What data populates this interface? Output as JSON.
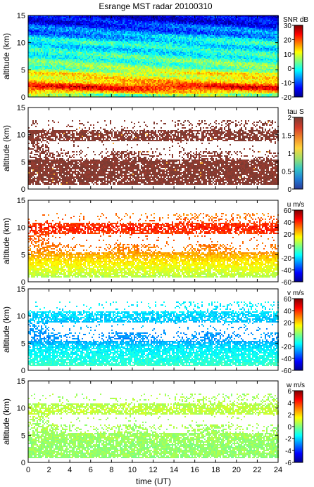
{
  "chart_data": {
    "type": "heatmap",
    "title": "Esrange MST radar 20100310",
    "xlabel": "time (UT)",
    "x_ticks": [
      0,
      2,
      4,
      6,
      8,
      10,
      12,
      14,
      16,
      18,
      20,
      22,
      24
    ],
    "xlim": [
      0,
      24
    ],
    "panels": [
      {
        "ylabel": "altitude (km)",
        "ylim": [
          0,
          15
        ],
        "y_ticks": [
          0,
          5,
          10,
          15
        ],
        "quantity": "SNR",
        "unit": "dB",
        "clim": [
          -20,
          30
        ],
        "cbar_ticks": [
          -20,
          -10,
          0,
          10,
          20,
          30
        ],
        "coverage": "full",
        "profile": [
          [
            0.5,
            5
          ],
          [
            1.0,
            14
          ],
          [
            1.5,
            20
          ],
          [
            2.0,
            24
          ],
          [
            2.5,
            18
          ],
          [
            3.0,
            14
          ],
          [
            3.5,
            12
          ],
          [
            4.0,
            9
          ],
          [
            4.5,
            12
          ],
          [
            5.0,
            6
          ],
          [
            6.0,
            4
          ],
          [
            7.0,
            2
          ],
          [
            8.0,
            0
          ],
          [
            9.0,
            -2
          ],
          [
            10.0,
            0
          ],
          [
            11.0,
            -4
          ],
          [
            12.0,
            -8
          ],
          [
            13.0,
            -10
          ],
          [
            14.0,
            -14
          ],
          [
            15.0,
            -16
          ]
        ]
      },
      {
        "ylabel": "altitude (km)",
        "ylim": [
          0,
          15
        ],
        "y_ticks": [
          0,
          5,
          10,
          15
        ],
        "quantity": "tau",
        "unit": "S",
        "clim": [
          0,
          2
        ],
        "cbar_ticks": [
          0,
          0.5,
          1,
          1.5,
          2
        ],
        "coverage": "sparse",
        "profile": [
          [
            1.0,
            1.96
          ],
          [
            5.0,
            1.96
          ],
          [
            10.0,
            1.96
          ],
          [
            13.0,
            1.96
          ]
        ]
      },
      {
        "ylabel": "altitude (km)",
        "ylim": [
          0,
          15
        ],
        "y_ticks": [
          0,
          5,
          10,
          15
        ],
        "quantity": "u",
        "unit": "m/s",
        "clim": [
          -60,
          60
        ],
        "cbar_ticks": [
          -60,
          -40,
          -20,
          0,
          20,
          40,
          60
        ],
        "coverage": "sparse",
        "profile": [
          [
            1.0,
            6
          ],
          [
            2.0,
            10
          ],
          [
            3.0,
            14
          ],
          [
            4.0,
            18
          ],
          [
            5.0,
            24
          ],
          [
            6.0,
            30
          ],
          [
            8.0,
            34
          ],
          [
            9.0,
            38
          ],
          [
            10.0,
            42
          ],
          [
            11.0,
            38
          ],
          [
            12.5,
            30
          ]
        ]
      },
      {
        "ylabel": "altitude (km)",
        "ylim": [
          0,
          15
        ],
        "y_ticks": [
          0,
          5,
          10,
          15
        ],
        "quantity": "v",
        "unit": "m/s",
        "clim": [
          -60,
          60
        ],
        "cbar_ticks": [
          -60,
          -40,
          -20,
          0,
          20,
          40,
          60
        ],
        "coverage": "sparse",
        "profile": [
          [
            1.0,
            -8
          ],
          [
            2.0,
            -12
          ],
          [
            3.0,
            -14
          ],
          [
            4.0,
            -16
          ],
          [
            5.0,
            -22
          ],
          [
            6.0,
            -28
          ],
          [
            8.0,
            -26
          ],
          [
            9.0,
            -22
          ],
          [
            10.0,
            -20
          ],
          [
            11.0,
            -18
          ],
          [
            12.5,
            -16
          ]
        ]
      },
      {
        "ylabel": "altitude (km)",
        "ylim": [
          0,
          15
        ],
        "y_ticks": [
          0,
          5,
          10,
          15
        ],
        "quantity": "w",
        "unit": "m/s",
        "clim": [
          -6,
          6
        ],
        "cbar_ticks": [
          -6,
          -4,
          -2,
          0,
          2,
          4,
          6
        ],
        "coverage": "sparse",
        "profile": [
          [
            1.0,
            0.2
          ],
          [
            2.0,
            0.3
          ],
          [
            3.0,
            0.2
          ],
          [
            4.0,
            0.3
          ],
          [
            5.0,
            0.4
          ],
          [
            8.0,
            0.5
          ],
          [
            9.0,
            0.7
          ],
          [
            10.0,
            0.8
          ],
          [
            11.0,
            0.6
          ],
          [
            12.5,
            0.4
          ]
        ]
      }
    ]
  }
}
